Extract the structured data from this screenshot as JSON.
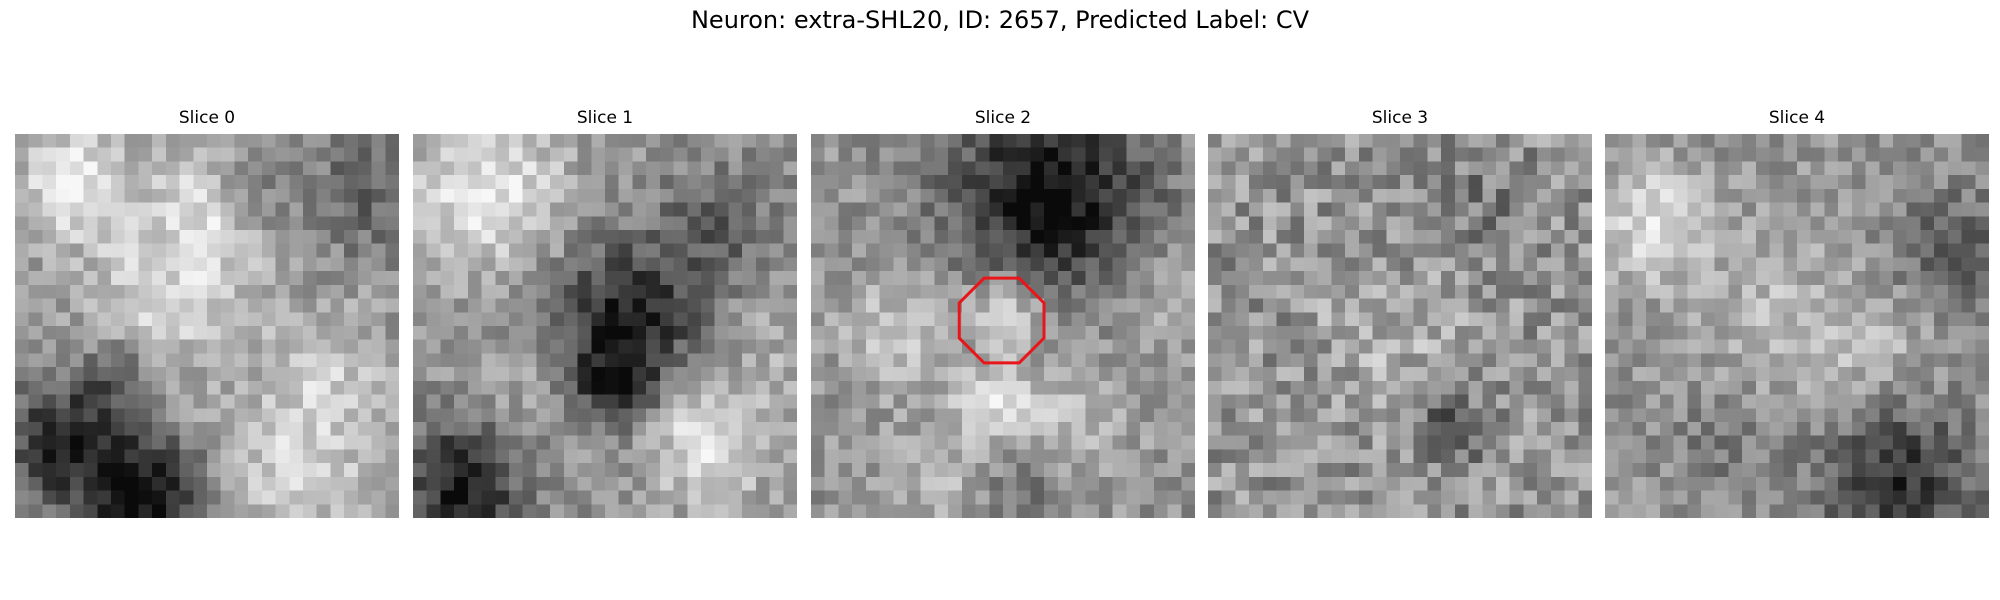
{
  "figure": {
    "title": "Neuron: extra-SHL20, ID: 2657, Predicted Label: CV"
  },
  "slices": [
    {
      "label": "Slice 0",
      "seed": 11,
      "pattern": "blobs0"
    },
    {
      "label": "Slice 1",
      "seed": 23,
      "pattern": "blobs1"
    },
    {
      "label": "Slice 2",
      "seed": 37,
      "pattern": "blobs2",
      "roi": true
    },
    {
      "label": "Slice 3",
      "seed": 51,
      "pattern": "noise"
    },
    {
      "label": "Slice 4",
      "seed": 67,
      "pattern": "blobs4"
    }
  ],
  "colors": {
    "roi": "#e8161a",
    "colormap": "gray"
  }
}
